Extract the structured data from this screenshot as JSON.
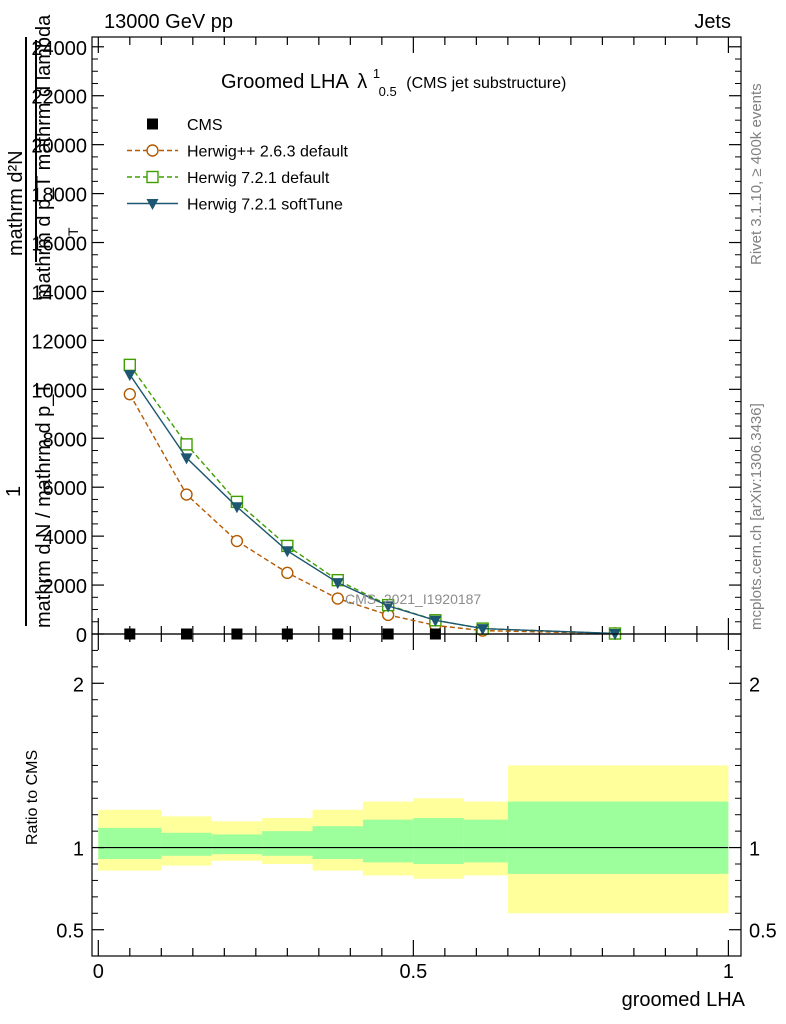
{
  "header": {
    "energy_label": "13000 GeV pp",
    "category_label": "Jets"
  },
  "side_labels": {
    "rivet": "Rivet 3.1.10, ≥ 400k events",
    "mcplots": "mcplots.cern.ch [arXiv:1306.3436]"
  },
  "watermark": "CMS_2021_I1920187",
  "chart_data": [
    {
      "type": "line",
      "title": "Groomed LHA",
      "title_symbol": "λ",
      "title_sup": "1",
      "title_sub": "0.5",
      "subtitle": "(CMS jet substructure)",
      "xlabel": "groomed LHA",
      "ylabel_lines": [
        "mathrm d²N",
        "mathrm d p_T mathrm d lambda"
      ],
      "ylabel_norm_lines": [
        "1",
        "mathrm d N / mathrm d p_T"
      ],
      "ylabel_pt_sub": "T",
      "xlim": [
        -0.01,
        1.02
      ],
      "ylim": [
        0,
        24400
      ],
      "yticks": [
        {
          "v": 0,
          "label": "0"
        },
        {
          "v": 2000,
          "label": "2000"
        },
        {
          "v": 4000,
          "label": "4000"
        },
        {
          "v": 6000,
          "label": "6000"
        },
        {
          "v": 8000,
          "label": "8000"
        },
        {
          "v": 10000,
          "label": "10000"
        },
        {
          "v": 12000,
          "label": "12000"
        },
        {
          "v": 14000,
          "label": "14000"
        },
        {
          "v": 16000,
          "label": "16000"
        },
        {
          "v": 18000,
          "label": "18000"
        },
        {
          "v": 20000,
          "label": "20000"
        },
        {
          "v": 22000,
          "label": "22000"
        },
        {
          "v": 24000,
          "label": "24000"
        }
      ],
      "legend_position": "top-left",
      "series": [
        {
          "name": "CMS",
          "color": "#000000",
          "marker": "square",
          "line": "none",
          "x": [
            0.05,
            0.14,
            0.22,
            0.3,
            0.38,
            0.46,
            0.535
          ],
          "y": [
            0,
            0,
            0,
            0,
            0,
            0,
            0
          ]
        },
        {
          "name": "Herwig++ 2.6.3 default",
          "color": "#b35900",
          "marker": "circle",
          "line": "dashed",
          "x": [
            0.05,
            0.14,
            0.22,
            0.3,
            0.38,
            0.46,
            0.535,
            0.61,
            0.82
          ],
          "y": [
            9800,
            5700,
            3800,
            2500,
            1450,
            780,
            350,
            140,
            20
          ]
        },
        {
          "name": "Herwig 7.2.1 default",
          "color": "#3f9f00",
          "marker": "square-open",
          "line": "dashed",
          "x": [
            0.05,
            0.14,
            0.22,
            0.3,
            0.38,
            0.46,
            0.535,
            0.61,
            0.82
          ],
          "y": [
            11000,
            7750,
            5400,
            3600,
            2200,
            1180,
            560,
            220,
            20
          ]
        },
        {
          "name": "Herwig 7.2.1 softTune",
          "color": "#1c5670",
          "marker": "triangle-down",
          "line": "solid",
          "x": [
            0.05,
            0.14,
            0.22,
            0.3,
            0.38,
            0.46,
            0.535,
            0.61,
            0.82
          ],
          "y": [
            10600,
            7200,
            5200,
            3400,
            2100,
            1150,
            560,
            220,
            20
          ]
        }
      ]
    },
    {
      "type": "area",
      "ylabel": "Ratio to CMS",
      "xlabel": "groomed LHA",
      "xlim": [
        -0.01,
        1.02
      ],
      "ylim": [
        0.34,
        2.3
      ],
      "yticks": [
        {
          "v": 0.5,
          "label": "0.5"
        },
        {
          "v": 1,
          "label": "1"
        },
        {
          "v": 2,
          "label": "2"
        }
      ],
      "xticks": [
        {
          "v": 0,
          "label": "0"
        },
        {
          "v": 0.5,
          "label": "0.5"
        },
        {
          "v": 1,
          "label": "1"
        }
      ],
      "reference_line": 1,
      "bands": {
        "edges": [
          0,
          0.1,
          0.18,
          0.26,
          0.34,
          0.42,
          0.5,
          0.58,
          0.65,
          1.0
        ],
        "yellow_up": [
          1.23,
          1.19,
          1.16,
          1.18,
          1.23,
          1.28,
          1.3,
          1.28,
          1.5
        ],
        "yellow_down": [
          0.86,
          0.89,
          0.92,
          0.9,
          0.86,
          0.83,
          0.81,
          0.83,
          0.6
        ],
        "green_up": [
          1.12,
          1.09,
          1.08,
          1.1,
          1.13,
          1.17,
          1.18,
          1.17,
          1.28
        ],
        "green_down": [
          0.93,
          0.95,
          0.96,
          0.95,
          0.93,
          0.91,
          0.9,
          0.91,
          0.84
        ],
        "yellow_color": "#ffff9c",
        "green_color": "#9cff9c"
      }
    }
  ]
}
